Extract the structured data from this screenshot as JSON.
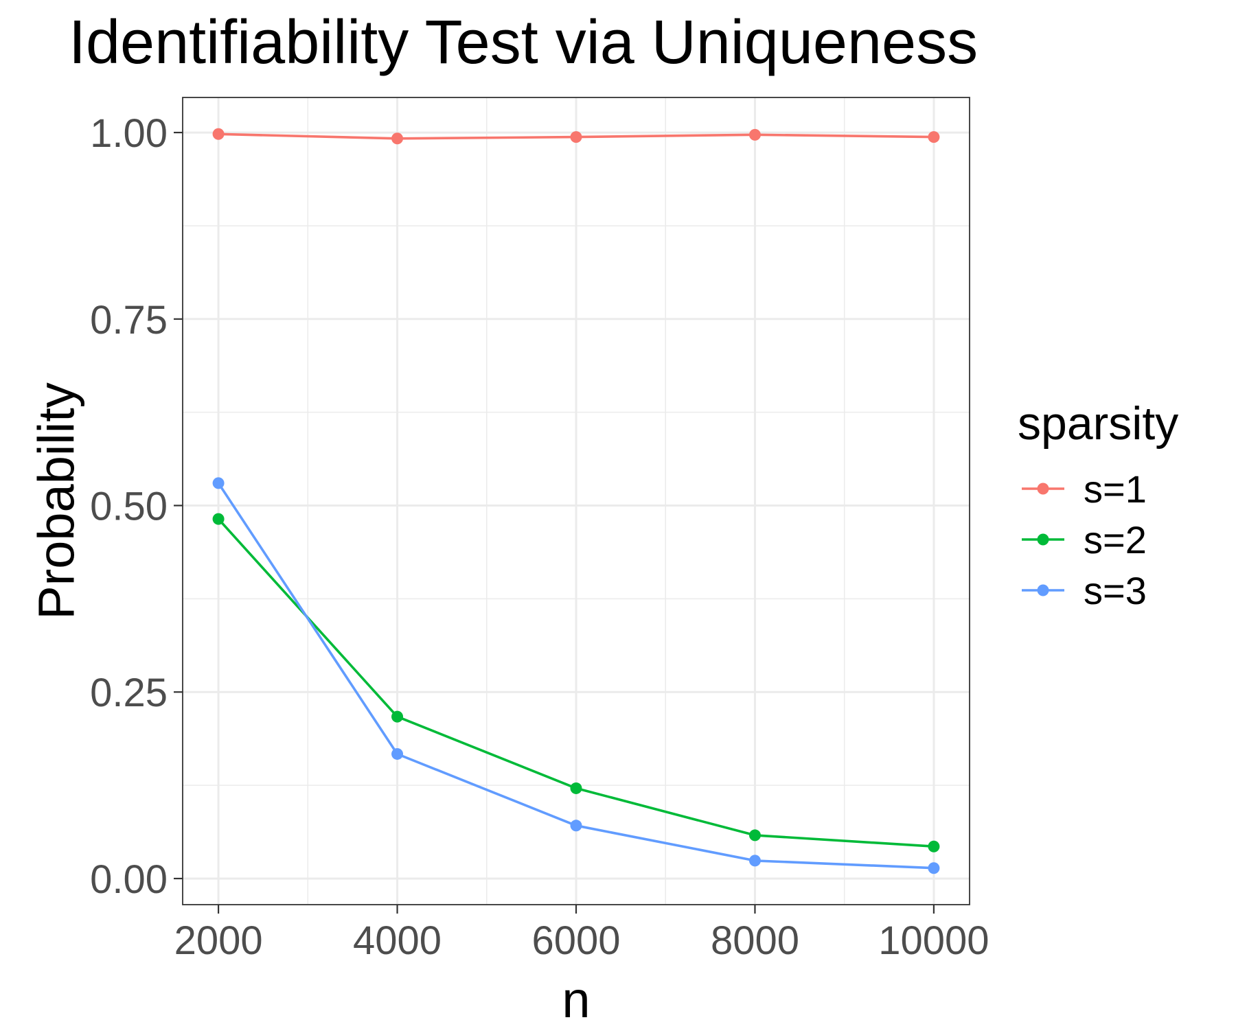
{
  "chart_data": {
    "type": "line",
    "title": "Identifiability Test via Uniqueness",
    "xlabel": "n",
    "ylabel": "Probability",
    "x": [
      2000,
      4000,
      6000,
      8000,
      10000
    ],
    "x_tick_labels": [
      "2000",
      "4000",
      "6000",
      "8000",
      "10000"
    ],
    "y_ticks": [
      0,
      0.25,
      0.5,
      0.75,
      1
    ],
    "y_tick_labels": [
      "0.00",
      "0.25",
      "0.50",
      "0.75",
      "1.00"
    ],
    "xlim": [
      1600,
      10400
    ],
    "ylim": [
      -0.035,
      1.047
    ],
    "grid": true,
    "legend": {
      "title": "sparsity",
      "placement": "right"
    },
    "series": [
      {
        "name": "s=1",
        "color": "#F8766D",
        "values": [
          0.998,
          0.992,
          0.994,
          0.997,
          0.994
        ]
      },
      {
        "name": "s=2",
        "color": "#00BA38",
        "values": [
          0.482,
          0.217,
          0.121,
          0.058,
          0.043
        ]
      },
      {
        "name": "s=3",
        "color": "#619CFF",
        "values": [
          0.53,
          0.167,
          0.071,
          0.024,
          0.014
        ]
      }
    ]
  }
}
